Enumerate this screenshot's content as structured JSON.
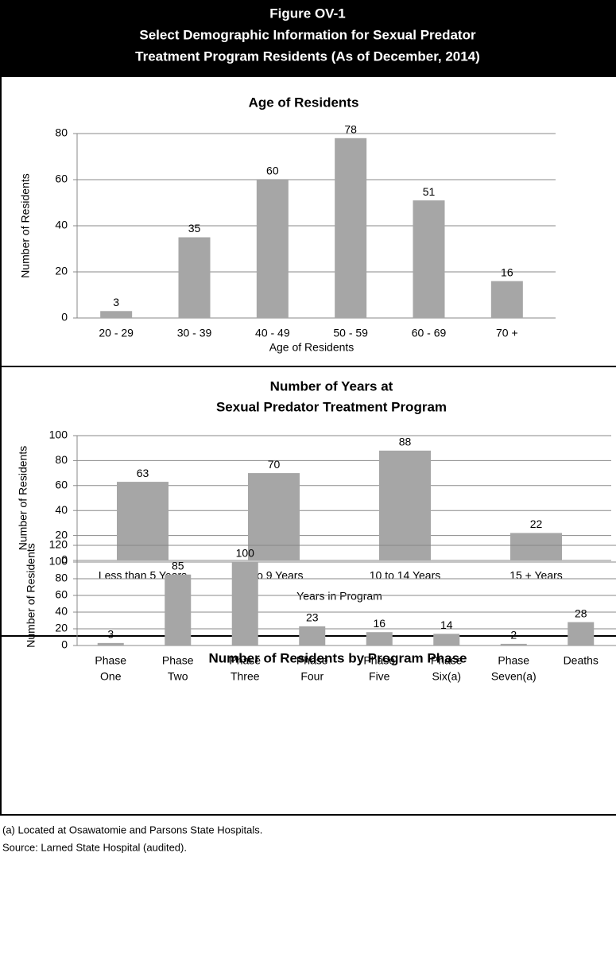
{
  "figure": {
    "title": [
      "Figure OV-1",
      "Select Demographic Information for Sexual Predator",
      "Treatment Program Residents (As of December, 2014)"
    ]
  },
  "chart_data": [
    {
      "type": "bar",
      "title": [
        "Age of Residents"
      ],
      "x_label": "Age of Residents",
      "y_label": "Number of Residents",
      "categories": [
        [
          "20 - 29"
        ],
        [
          "30 - 39"
        ],
        [
          "40 - 49"
        ],
        [
          "50 - 59"
        ],
        [
          "60 - 69"
        ],
        [
          "70 +"
        ]
      ],
      "values": [
        3,
        35,
        60,
        78,
        51,
        16
      ],
      "color": "#a6a6a6",
      "ylim": [
        0,
        80
      ],
      "yticks": [
        0,
        20,
        40,
        60,
        80
      ],
      "grid": true
    },
    {
      "type": "bar",
      "title": [
        "Number of Years at",
        "Sexual Predator Treatment Program"
      ],
      "x_label": "Years in Program",
      "y_label": "Number of Residents",
      "categories": [
        [
          "Less than 5 Years"
        ],
        [
          "5 to 9 Years"
        ],
        [
          "10 to 14 Years"
        ],
        [
          "15 + Years"
        ]
      ],
      "values": [
        63,
        70,
        88,
        22
      ],
      "color": "#a6a6a6",
      "ylim": [
        0,
        100
      ],
      "yticks": [
        0,
        20,
        40,
        60,
        80,
        100
      ],
      "grid": true
    },
    {
      "type": "bar",
      "title": [
        "Number of Residents by Program Phase"
      ],
      "y_label": "Number of Residents",
      "categories": [
        [
          "Phase",
          "One"
        ],
        [
          "Phase",
          "Two"
        ],
        [
          "Phase",
          "Three"
        ],
        [
          "Phase",
          "Four"
        ],
        [
          "Phase",
          "Five"
        ],
        [
          "Phase",
          "Six(a)"
        ],
        [
          "Phase",
          "Seven(a)"
        ],
        [
          "Deaths"
        ]
      ],
      "values": [
        3,
        85,
        100,
        23,
        16,
        14,
        2,
        28
      ],
      "color": "#a6a6a6",
      "ylim": [
        0,
        120
      ],
      "yticks": [
        0,
        20,
        40,
        60,
        80,
        100,
        120
      ],
      "grid": true
    }
  ],
  "notes": [
    "(a) Located at Osawatomie and Parsons State Hospitals.",
    "Source: Larned State Hospital (audited)."
  ]
}
